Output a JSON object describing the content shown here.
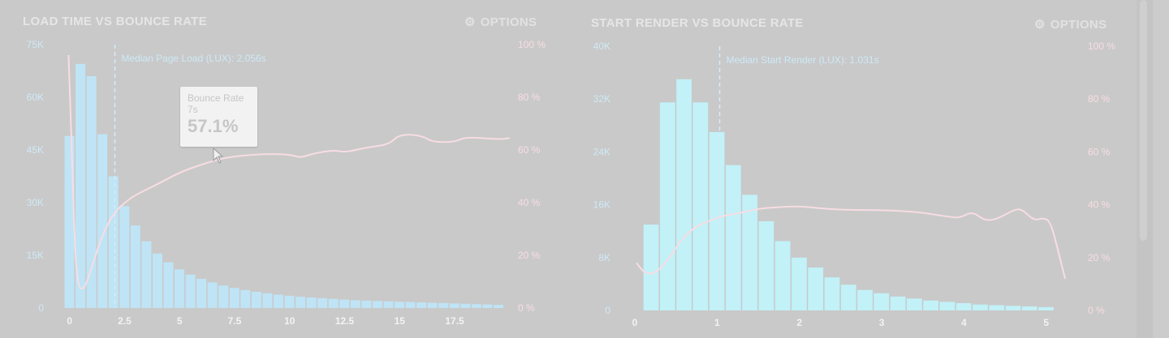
{
  "panels": [
    {
      "title": "LOAD TIME VS BOUNCE RATE",
      "options_label": "OPTIONS",
      "median_label": "Median Page Load (LUX): 2.056s",
      "tooltip": {
        "title": "Bounce Rate",
        "x": "7s",
        "value": "57.1%"
      }
    },
    {
      "title": "START RENDER VS BOUNCE RATE",
      "options_label": "OPTIONS",
      "median_label": "Median Start Render (LUX): 1.031s"
    }
  ],
  "colors": {
    "background": "#c9c9c9",
    "bars": "#bfe4f6",
    "bars_right": "#c2f1f8",
    "bounce_line": "#f8dde3",
    "title": "#e6e6e6"
  },
  "icons": {
    "options": "gear-icon",
    "cursor": "pointer-cursor-icon"
  },
  "chart_data": [
    {
      "type": "bar",
      "title": "LOAD TIME VS BOUNCE RATE",
      "x_tick_labels": [
        "0",
        "2.5",
        "5",
        "7.5",
        "10",
        "12.5",
        "15",
        "17.5"
      ],
      "x_ticks": [
        0,
        2.5,
        5,
        7.5,
        10,
        12.5,
        15,
        17.5
      ],
      "xlim": [
        -0.25,
        19.75
      ],
      "bar_width": 0.5,
      "y_left_tick_labels": [
        "0",
        "15K",
        "30K",
        "45K",
        "60K",
        "75K"
      ],
      "y_left_ticks": [
        0,
        15000,
        30000,
        45000,
        60000,
        75000
      ],
      "ylim_left": [
        0,
        75000
      ],
      "y_right_tick_labels": [
        "0 %",
        "20 %",
        "40 %",
        "60 %",
        "80 %",
        "100 %"
      ],
      "y_right_ticks": [
        0,
        20,
        40,
        60,
        80,
        100
      ],
      "ylim_right": [
        0,
        100
      ],
      "median_x": 2.056,
      "series": [
        {
          "values": [
            {
              "x": 0,
              "y": 49000
            },
            {
              "x": 0.5,
              "y": 69500
            },
            {
              "x": 1,
              "y": 66000
            },
            {
              "x": 1.5,
              "y": 49500
            },
            {
              "x": 2,
              "y": 37500
            },
            {
              "x": 2.5,
              "y": 29000
            },
            {
              "x": 3,
              "y": 23500
            },
            {
              "x": 3.5,
              "y": 19000
            },
            {
              "x": 4,
              "y": 15500
            },
            {
              "x": 4.5,
              "y": 13000
            },
            {
              "x": 5,
              "y": 11000
            },
            {
              "x": 5.5,
              "y": 9500
            },
            {
              "x": 6,
              "y": 8300
            },
            {
              "x": 6.5,
              "y": 7300
            },
            {
              "x": 7,
              "y": 6400
            },
            {
              "x": 7.5,
              "y": 5700
            },
            {
              "x": 8,
              "y": 5100
            },
            {
              "x": 8.5,
              "y": 4600
            },
            {
              "x": 9,
              "y": 4200
            },
            {
              "x": 9.5,
              "y": 3800
            },
            {
              "x": 10,
              "y": 3500
            },
            {
              "x": 10.5,
              "y": 3200
            },
            {
              "x": 11,
              "y": 3000
            },
            {
              "x": 11.5,
              "y": 2800
            },
            {
              "x": 12,
              "y": 2600
            },
            {
              "x": 12.5,
              "y": 2400
            },
            {
              "x": 13,
              "y": 2200
            },
            {
              "x": 13.5,
              "y": 2100
            },
            {
              "x": 14,
              "y": 2000
            },
            {
              "x": 14.5,
              "y": 1900
            },
            {
              "x": 15,
              "y": 1800
            },
            {
              "x": 15.5,
              "y": 1700
            },
            {
              "x": 16,
              "y": 1600
            },
            {
              "x": 16.5,
              "y": 1500
            },
            {
              "x": 17,
              "y": 1400
            },
            {
              "x": 17.5,
              "y": 1300
            },
            {
              "x": 18,
              "y": 1200
            },
            {
              "x": 18.5,
              "y": 1100
            },
            {
              "x": 19,
              "y": 1000
            },
            {
              "x": 19.5,
              "y": 900
            }
          ]
        },
        {
          "axis": "right",
          "values": [
            {
              "x": -0.05,
              "y": 96
            },
            {
              "x": 0.1,
              "y": 60
            },
            {
              "x": 0.25,
              "y": 20
            },
            {
              "x": 0.4,
              "y": 8
            },
            {
              "x": 0.6,
              "y": 7
            },
            {
              "x": 0.8,
              "y": 10
            },
            {
              "x": 1.1,
              "y": 18
            },
            {
              "x": 1.5,
              "y": 28
            },
            {
              "x": 2,
              "y": 36
            },
            {
              "x": 2.5,
              "y": 40
            },
            {
              "x": 3,
              "y": 43
            },
            {
              "x": 4,
              "y": 47
            },
            {
              "x": 5,
              "y": 51.5
            },
            {
              "x": 6,
              "y": 54.5
            },
            {
              "x": 7,
              "y": 57
            },
            {
              "x": 8,
              "y": 58
            },
            {
              "x": 9,
              "y": 58.5
            },
            {
              "x": 10,
              "y": 58.3
            },
            {
              "x": 10.5,
              "y": 57
            },
            {
              "x": 11,
              "y": 58.5
            },
            {
              "x": 12,
              "y": 60
            },
            {
              "x": 12.5,
              "y": 59
            },
            {
              "x": 13.5,
              "y": 61
            },
            {
              "x": 14.5,
              "y": 62
            },
            {
              "x": 15,
              "y": 66
            },
            {
              "x": 16,
              "y": 65.5
            },
            {
              "x": 16.5,
              "y": 63
            },
            {
              "x": 17.5,
              "y": 63
            },
            {
              "x": 18,
              "y": 65
            },
            {
              "x": 19.5,
              "y": 64
            },
            {
              "x": 20,
              "y": 64.5
            }
          ]
        }
      ]
    },
    {
      "type": "bar",
      "title": "START RENDER VS BOUNCE RATE",
      "x_tick_labels": [
        "0",
        "1",
        "2",
        "3",
        "4",
        "5"
      ],
      "x_ticks": [
        0,
        1,
        2,
        3,
        4,
        5
      ],
      "xlim": [
        0,
        5.2
      ],
      "bar_width": 0.2,
      "y_left_tick_labels": [
        "0",
        "8K",
        "16K",
        "24K",
        "32K",
        "40K"
      ],
      "y_left_ticks": [
        0,
        8000,
        16000,
        24000,
        32000,
        40000
      ],
      "ylim_left": [
        0,
        40000
      ],
      "y_right_tick_labels": [
        "0 %",
        "20 %",
        "40 %",
        "60 %",
        "80 %",
        "100 %"
      ],
      "y_right_ticks": [
        0,
        20,
        40,
        60,
        80,
        100
      ],
      "ylim_right": [
        0,
        100
      ],
      "median_x": 1.031,
      "series": [
        {
          "values": [
            {
              "x": 0.2,
              "y": 13000
            },
            {
              "x": 0.4,
              "y": 31500
            },
            {
              "x": 0.6,
              "y": 35000
            },
            {
              "x": 0.8,
              "y": 31500
            },
            {
              "x": 1,
              "y": 27000
            },
            {
              "x": 1.2,
              "y": 22000
            },
            {
              "x": 1.4,
              "y": 17500
            },
            {
              "x": 1.6,
              "y": 13500
            },
            {
              "x": 1.8,
              "y": 10500
            },
            {
              "x": 2,
              "y": 8000
            },
            {
              "x": 2.2,
              "y": 6500
            },
            {
              "x": 2.4,
              "y": 5000
            },
            {
              "x": 2.6,
              "y": 3900
            },
            {
              "x": 2.8,
              "y": 3100
            },
            {
              "x": 3,
              "y": 2600
            },
            {
              "x": 3.2,
              "y": 2100
            },
            {
              "x": 3.4,
              "y": 1800
            },
            {
              "x": 3.6,
              "y": 1500
            },
            {
              "x": 3.8,
              "y": 1300
            },
            {
              "x": 4,
              "y": 1100
            },
            {
              "x": 4.2,
              "y": 900
            },
            {
              "x": 4.4,
              "y": 800
            },
            {
              "x": 4.6,
              "y": 700
            },
            {
              "x": 4.8,
              "y": 600
            },
            {
              "x": 5,
              "y": 500
            }
          ]
        },
        {
          "axis": "right",
          "values": [
            {
              "x": 0.02,
              "y": 18
            },
            {
              "x": 0.12,
              "y": 14
            },
            {
              "x": 0.25,
              "y": 14
            },
            {
              "x": 0.4,
              "y": 19
            },
            {
              "x": 0.55,
              "y": 26
            },
            {
              "x": 0.7,
              "y": 31
            },
            {
              "x": 0.9,
              "y": 34
            },
            {
              "x": 1.1,
              "y": 36
            },
            {
              "x": 1.3,
              "y": 37
            },
            {
              "x": 1.5,
              "y": 38.5
            },
            {
              "x": 1.7,
              "y": 39
            },
            {
              "x": 2,
              "y": 39.5
            },
            {
              "x": 2.3,
              "y": 38.5
            },
            {
              "x": 2.6,
              "y": 38
            },
            {
              "x": 3,
              "y": 38
            },
            {
              "x": 3.3,
              "y": 37.5
            },
            {
              "x": 3.5,
              "y": 37
            },
            {
              "x": 3.8,
              "y": 35.5
            },
            {
              "x": 3.95,
              "y": 35
            },
            {
              "x": 4.1,
              "y": 37.5
            },
            {
              "x": 4.25,
              "y": 34
            },
            {
              "x": 4.4,
              "y": 34.5
            },
            {
              "x": 4.6,
              "y": 38
            },
            {
              "x": 4.7,
              "y": 38.5
            },
            {
              "x": 4.85,
              "y": 34
            },
            {
              "x": 4.95,
              "y": 35
            },
            {
              "x": 5.05,
              "y": 34
            },
            {
              "x": 5.15,
              "y": 22
            },
            {
              "x": 5.23,
              "y": 12
            }
          ]
        }
      ]
    }
  ]
}
